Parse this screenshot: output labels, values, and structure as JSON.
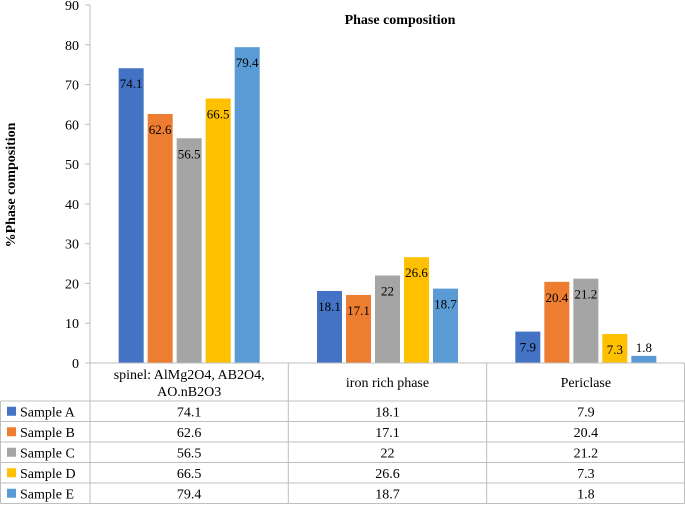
{
  "chart_data": {
    "type": "bar",
    "title": "Phase composition",
    "ylabel": "%Phase composition",
    "xlabel": "",
    "ylim": [
      0,
      90
    ],
    "yticks": [
      0,
      10,
      20,
      30,
      40,
      50,
      60,
      70,
      80,
      90
    ],
    "grid": false,
    "legend": "data-table",
    "categories": [
      "spinel: AlMg2O4, AB2O4, AO.nB2O3",
      "iron rich phase",
      "Periclase"
    ],
    "series": [
      {
        "name": "Sample A",
        "color": "#4472C4",
        "values": [
          74.1,
          18.1,
          7.9
        ],
        "labels": [
          "74.1",
          "18.1",
          "7.9"
        ]
      },
      {
        "name": "Sample B",
        "color": "#ED7D31",
        "values": [
          62.6,
          17.1,
          20.4
        ],
        "labels": [
          "62.6",
          "17.1",
          "20.4"
        ]
      },
      {
        "name": "Sample C",
        "color": "#A5A5A5",
        "values": [
          56.5,
          22,
          21.2
        ],
        "labels": [
          "56.5",
          "22",
          "21.2"
        ]
      },
      {
        "name": "Sample D",
        "color": "#FFC000",
        "values": [
          66.5,
          26.6,
          7.3
        ],
        "labels": [
          "66.5",
          "26.6",
          "7.3"
        ]
      },
      {
        "name": "Sample E",
        "color": "#5B9BD5",
        "values": [
          79.4,
          18.7,
          1.8
        ],
        "labels": [
          "79.4",
          "18.7",
          "1.8"
        ]
      }
    ]
  }
}
